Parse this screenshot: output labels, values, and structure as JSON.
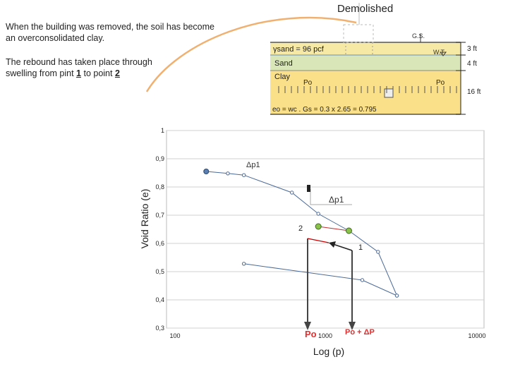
{
  "title": "Demolished",
  "notes": {
    "line1": "When the building was removed, the soil has become",
    "line2": "an overconsolidated clay.",
    "line3": "The rebound has taken place through",
    "line4_pre": "swelling from pint ",
    "point_a": "1",
    "line4_mid": " to point ",
    "point_b": "2"
  },
  "profile": {
    "gs_label": "G.S.",
    "wt_label": "W.T.",
    "gamma_label": "γsand = 96 pcf",
    "sand_label": "Sand",
    "clay_label": "Clay",
    "po_left": "Po",
    "po_right": "Po",
    "dim_top": "3 ft",
    "dim_mid": "4 ft",
    "dim_bottom": "16 ft",
    "eo_formula": "eo = wc . Gs = 0.3 x 2.65 = 0.795",
    "colors": {
      "sand": "#f6e9a6",
      "clay": "#fbe08a",
      "water_band": "#d9e6b8"
    }
  },
  "chart": {
    "ylabel": "Void Ratio (e)",
    "xlabel": "Log (p)",
    "yticks": [
      "1",
      "0,9",
      "0,8",
      "0,7",
      "0,6",
      "0,5",
      "0,4",
      "0,3"
    ],
    "xticks": [
      "100",
      "1000",
      "10000"
    ],
    "annotations": {
      "dp_upper": "Δp1",
      "dp_lower": "Δp1",
      "point1": "1",
      "point2": "2",
      "po_axis": "Po",
      "po_plus": "Po + ΔP"
    }
  },
  "chart_data": {
    "type": "line",
    "xscale": "log",
    "xlim": [
      100,
      10000
    ],
    "ylim": [
      0.3,
      1.0
    ],
    "xlabel": "Log (p)",
    "ylabel": "Void Ratio (e)",
    "series": [
      {
        "points": [
          [
            161,
            0.855
          ],
          [
            224,
            0.848
          ],
          [
            286,
            0.842
          ],
          [
            595,
            0.78
          ],
          [
            890,
            0.705
          ],
          [
            1418,
            0.645
          ],
          [
            2213,
            0.57
          ],
          [
            2950,
            0.415
          ]
        ]
      },
      {
        "points": [
          [
            2950,
            0.415
          ],
          [
            1740,
            0.47
          ],
          [
            286,
            0.528
          ]
        ]
      },
      {
        "points": [
          [
            1418,
            0.645
          ],
          [
            890,
            0.66
          ]
        ]
      }
    ],
    "highlight_points": [
      {
        "label": "1",
        "x": 1418,
        "y": 0.645
      },
      {
        "label": "2",
        "x": 890,
        "y": 0.66
      }
    ],
    "markers_on_x_axis": [
      "Po",
      "Po + ΔP"
    ]
  }
}
